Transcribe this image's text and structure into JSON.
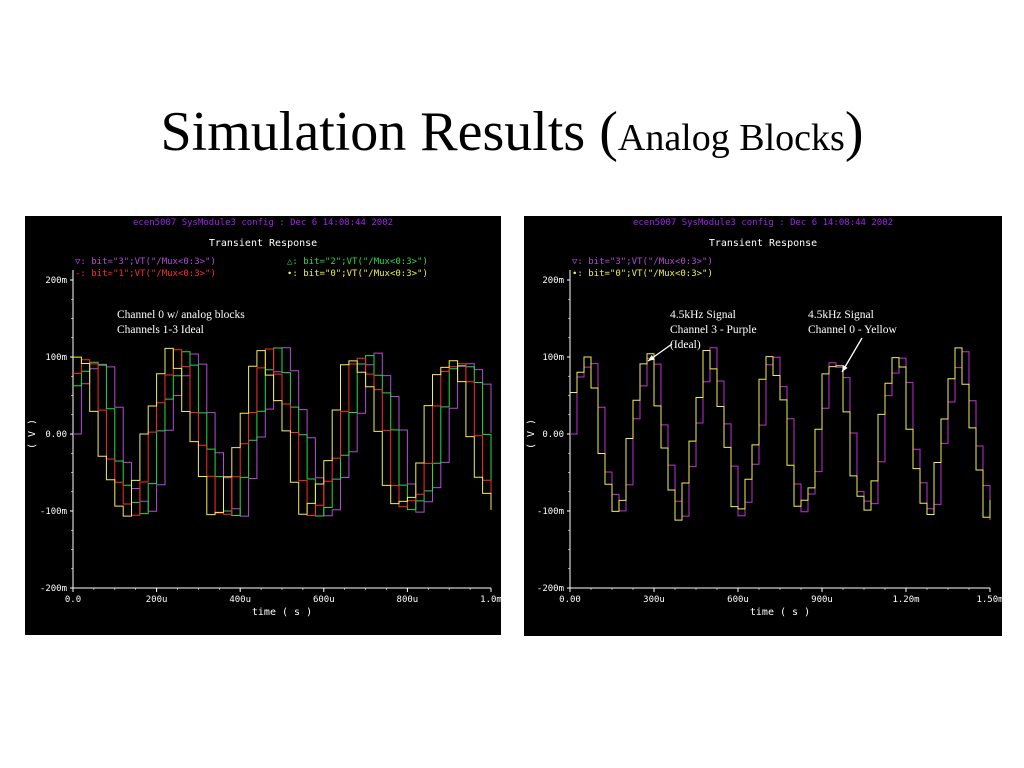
{
  "slide": {
    "title_main": "Simulation Results (",
    "title_sub": "Analog Blocks",
    "title_close": ")"
  },
  "chart_data": [
    {
      "type": "line",
      "header": "ecen5007 SysModule3 config : Dec  6 14:08:44 2002",
      "title": "Transient Response",
      "xlabel": "time ( s )",
      "ylabel": "( V )",
      "x_ticks": [
        "0.0",
        "200u",
        "400u",
        "600u",
        "800u",
        "1.0m"
      ],
      "y_ticks": [
        "200m",
        "100m",
        "0.00",
        "-100m",
        "-200m"
      ],
      "xlim": [
        0,
        0.001
      ],
      "ylim": [
        -0.2,
        0.2
      ],
      "grid": false,
      "legend": [
        {
          "marker": "▽:",
          "label": "bit=\"3\";VT(\"/Mux<0:3>\")",
          "color": "#b24cd8"
        },
        {
          "marker": "-:",
          "label": "bit=\"1\";VT(\"/Mux<0:3>\")",
          "color": "#ff2a2a"
        },
        {
          "marker": "△:",
          "label": "bit=\"2\";VT(\"/Mux<0:3>\")",
          "color": "#22dd44"
        },
        {
          "marker": "∙:",
          "label": "bit=\"0\";VT(\"/Mux<0:3>\")",
          "color": "#f0f050"
        }
      ],
      "annotation": "Channel 0 w/ analog blocks\nChannels 1-3 Ideal",
      "signal": {
        "frequency_hz": 4500,
        "amplitude_v": 0.1
      },
      "series": [
        {
          "name": "bit=\"3\"",
          "color": "#b24cd8",
          "phase": 0.0,
          "step_us": 20
        },
        {
          "name": "bit=\"2\"",
          "color": "#22dd44",
          "phase": 0.55,
          "step_us": 20
        },
        {
          "name": "bit=\"1\"",
          "color": "#ff2a2a",
          "phase": 1.1,
          "step_us": 20
        },
        {
          "name": "bit=\"0\"",
          "color": "#f0f050",
          "phase": 1.65,
          "step_us": 20
        }
      ]
    },
    {
      "type": "line",
      "header": "ecen5007 SysModule3 config : Dec  6 14:08:44 2002",
      "title": "Transient Response",
      "xlabel": "time ( s )",
      "ylabel": "( V )",
      "x_ticks": [
        "0.00",
        "300u",
        "600u",
        "900u",
        "1.20m",
        "1.50m"
      ],
      "y_ticks": [
        "200m",
        "100m",
        "0.00",
        "-100m",
        "-200m"
      ],
      "xlim": [
        0,
        0.0015
      ],
      "ylim": [
        -0.2,
        0.2
      ],
      "grid": false,
      "legend": [
        {
          "marker": "▽:",
          "label": "bit=\"3\";VT(\"/Mux<0:3>\")",
          "color": "#b24cd8"
        },
        {
          "marker": "∙:",
          "label": "bit=\"0\";VT(\"/Mux<0:3>\")",
          "color": "#f0f050"
        }
      ],
      "annotations": [
        "4.5kHz Signal\nChannel 3 - Purple\n(Ideal)",
        "4.5kHz Signal\nChannel 0 - Yellow"
      ],
      "signal": {
        "frequency_hz": 4500,
        "amplitude_v": 0.1
      },
      "series": [
        {
          "name": "bit=\"3\"",
          "color": "#c030d8",
          "phase": 0.0,
          "step_us": 25
        },
        {
          "name": "bit=\"0\"",
          "color": "#f0f050",
          "phase": 0.45,
          "step_us": 25
        }
      ]
    }
  ]
}
